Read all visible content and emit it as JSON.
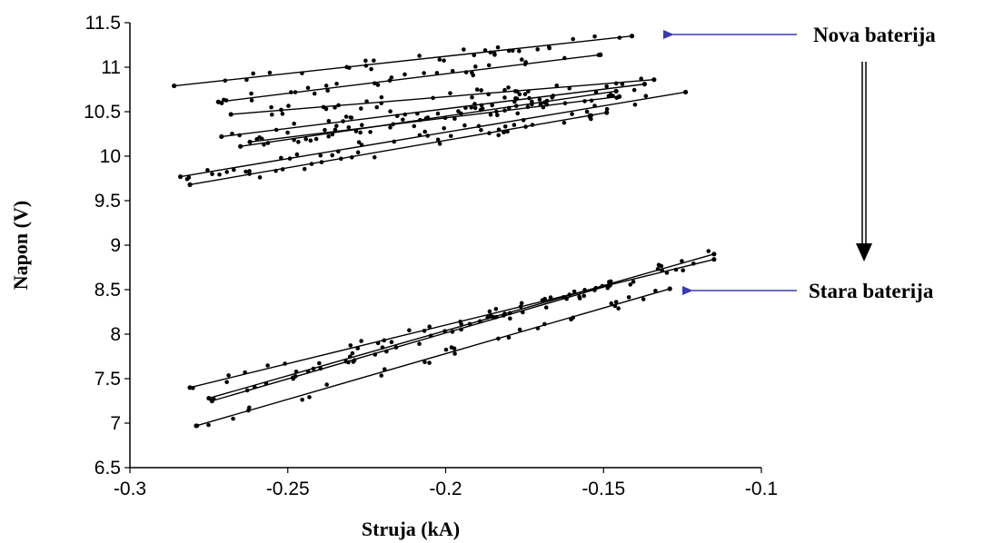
{
  "chart_data": {
    "type": "scatter",
    "xlabel": "Struja (kA)",
    "ylabel": "Napon (V)",
    "xlim": [
      -0.3,
      -0.1
    ],
    "ylim": [
      6.5,
      11.5
    ],
    "x_ticks": [
      "-0.3",
      "-0.25",
      "-0.2",
      "-0.15",
      "-0.1"
    ],
    "y_ticks": [
      "6.5",
      "7",
      "7.5",
      "8",
      "8.5",
      "9",
      "9.5",
      "10",
      "10.5",
      "11",
      "11.5"
    ],
    "grid": false,
    "annotations": [
      {
        "text": "Nova baterija",
        "arrow_points_to": "upper cluster"
      },
      {
        "text": "Stara baterija",
        "arrow_points_to": "lower cluster"
      }
    ],
    "series": [
      {
        "fit": {
          "x": [
            -0.286,
            -0.141
          ],
          "y": [
            10.79,
            11.35
          ]
        }
      },
      {
        "fit": {
          "x": [
            -0.272,
            -0.151
          ],
          "y": [
            10.61,
            11.14
          ]
        }
      },
      {
        "fit": {
          "x": [
            -0.268,
            -0.134
          ],
          "y": [
            10.47,
            10.86
          ]
        }
      },
      {
        "fit": {
          "x": [
            -0.271,
            -0.137
          ],
          "y": [
            10.22,
            10.81
          ]
        }
      },
      {
        "fit": {
          "x": [
            -0.265,
            -0.146
          ],
          "y": [
            10.11,
            10.73
          ]
        }
      },
      {
        "fit": {
          "x": [
            -0.262,
            -0.145
          ],
          "y": [
            10.16,
            10.67
          ]
        }
      },
      {
        "fit": {
          "x": [
            -0.284,
            -0.124
          ],
          "y": [
            9.77,
            10.72
          ]
        }
      },
      {
        "fit": {
          "x": [
            -0.281,
            -0.149
          ],
          "y": [
            9.68,
            10.49
          ]
        }
      },
      {
        "fit": {
          "x": [
            -0.281,
            -0.115
          ],
          "y": [
            7.4,
            8.84
          ]
        }
      },
      {
        "fit": {
          "x": [
            -0.275,
            -0.115
          ],
          "y": [
            7.28,
            8.9
          ]
        }
      },
      {
        "fit": {
          "x": [
            -0.274,
            -0.148
          ],
          "y": [
            7.25,
            8.55
          ]
        }
      },
      {
        "fit": {
          "x": [
            -0.279,
            -0.129
          ],
          "y": [
            6.97,
            8.51
          ]
        }
      }
    ]
  }
}
